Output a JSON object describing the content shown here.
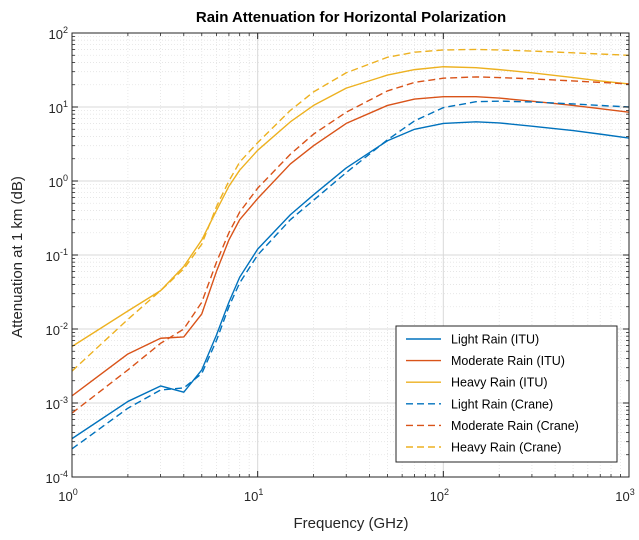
{
  "chart_data": {
    "type": "line",
    "title": "Rain Attenuation for Horizontal Polarization",
    "xlabel": "Frequency (GHz)",
    "ylabel": "Attenuation at 1 km (dB)",
    "xscale": "log",
    "yscale": "log",
    "xlim": [
      1,
      1000
    ],
    "ylim": [
      0.0001,
      100
    ],
    "grid": "on, major and minor",
    "legend_placement": "bottom-right",
    "xticks": [
      {
        "base": "10",
        "exp": "0"
      },
      {
        "base": "10",
        "exp": "1"
      },
      {
        "base": "10",
        "exp": "2"
      },
      {
        "base": "10",
        "exp": "3"
      }
    ],
    "yticks": [
      {
        "base": "10",
        "exp": "-4"
      },
      {
        "base": "10",
        "exp": "-3"
      },
      {
        "base": "10",
        "exp": "-2"
      },
      {
        "base": "10",
        "exp": "-1"
      },
      {
        "base": "10",
        "exp": "0"
      },
      {
        "base": "10",
        "exp": "1"
      },
      {
        "base": "10",
        "exp": "2"
      }
    ],
    "x": [
      1,
      2,
      3,
      4,
      5,
      6,
      7,
      8,
      10,
      15,
      20,
      30,
      50,
      70,
      100,
      150,
      200,
      300,
      500,
      700,
      1000
    ],
    "series": [
      {
        "name": "Light Rain (ITU)",
        "color": "#0072BD",
        "dash": "solid",
        "values": [
          0.00033,
          0.00105,
          0.0017,
          0.0014,
          0.0028,
          0.0083,
          0.023,
          0.05,
          0.12,
          0.35,
          0.65,
          1.5,
          3.5,
          5.0,
          6.0,
          6.3,
          6.1,
          5.5,
          4.8,
          4.3,
          3.8
        ]
      },
      {
        "name": "Moderate Rain (ITU)",
        "color": "#D95319",
        "dash": "solid",
        "values": [
          0.00125,
          0.0046,
          0.0075,
          0.0078,
          0.016,
          0.06,
          0.16,
          0.3,
          0.58,
          1.7,
          3.0,
          6.0,
          10.5,
          12.8,
          13.8,
          13.8,
          13.2,
          12.0,
          10.5,
          9.5,
          8.5
        ]
      },
      {
        "name": "Heavy Rain (ITU)",
        "color": "#EDB120",
        "dash": "solid",
        "values": [
          0.0058,
          0.0175,
          0.033,
          0.07,
          0.16,
          0.4,
          0.85,
          1.4,
          2.6,
          6.3,
          10.5,
          18.0,
          27.0,
          32.0,
          35.0,
          34.0,
          32.0,
          29.0,
          25.0,
          22.5,
          20.5
        ]
      },
      {
        "name": "Light Rain (Crane)",
        "color": "#0072BD",
        "dash": "dashed",
        "values": [
          0.00024,
          0.00085,
          0.0015,
          0.0016,
          0.0025,
          0.007,
          0.02,
          0.042,
          0.1,
          0.3,
          0.55,
          1.3,
          3.6,
          6.5,
          9.8,
          11.8,
          12.0,
          11.7,
          11.0,
          10.5,
          10.0
        ]
      },
      {
        "name": "Moderate Rain (Crane)",
        "color": "#D95319",
        "dash": "dashed",
        "values": [
          0.00073,
          0.0028,
          0.0064,
          0.01,
          0.023,
          0.08,
          0.2,
          0.38,
          0.8,
          2.3,
          4.3,
          8.5,
          16.5,
          21.5,
          24.5,
          25.5,
          25.0,
          24.0,
          22.5,
          21.5,
          20.5
        ]
      },
      {
        "name": "Heavy Rain (Crane)",
        "color": "#EDB120",
        "dash": "dashed",
        "values": [
          0.0027,
          0.0135,
          0.033,
          0.065,
          0.14,
          0.45,
          1.0,
          1.8,
          3.3,
          9.0,
          16.0,
          29.0,
          47.0,
          55.0,
          59.0,
          60.0,
          59.0,
          57.0,
          54.0,
          52.0,
          50.0
        ]
      }
    ]
  }
}
